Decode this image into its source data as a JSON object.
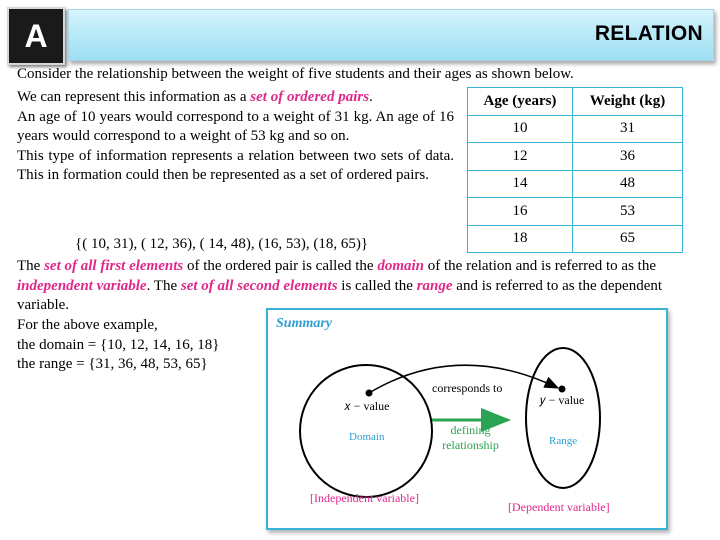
{
  "header": {
    "badge": "A",
    "title": "RELATION"
  },
  "intro": "Consider the relationship between the weight of five students and their ages as shown below.",
  "para1": {
    "line1_pre": "We can represent this information as a ",
    "line1_em": "set of ordered pairs",
    "line1_post": ".",
    "body1": "An age of  10 years would correspond to a weight of 31 kg. An age of 16 years would correspond to a weight of 53 kg and so on.",
    "body2": "This type of information represents a relation between two sets of data. This in formation could then be represented as a set of ordered pairs."
  },
  "ordered_pairs": "{( 10, 31), ( 12, 36), ( 14, 48), (16, 53), (18, 65)}",
  "table": {
    "headers": [
      "Age (years)",
      "Weight (kg)"
    ],
    "rows": [
      [
        "10",
        "31"
      ],
      [
        "12",
        "36"
      ],
      [
        "14",
        "48"
      ],
      [
        "16",
        "53"
      ],
      [
        "18",
        "65"
      ]
    ]
  },
  "para2": {
    "t1": "The ",
    "e1": "set of all first elements",
    "t2": " of the ordered pair is called the ",
    "e2": "domain",
    "t3": " of the relation and is referred to as the ",
    "e3": "independent variable",
    "t4": ". The ",
    "e4": "set of all second elements",
    "t5": " is called the ",
    "e5": "range",
    "t6": " and is referred to as the dependent variable."
  },
  "example": {
    "line1": "For the above example,",
    "line2": "the domain = {10, 12, 14, 16, 18}",
    "line3": "the range = {31, 36, 48, 53, 65}"
  },
  "summary": {
    "title": "Summary",
    "x_value": "𝑥 − value",
    "y_value": "𝑦 − value",
    "corresponds": "corresponds to",
    "defining_1": "defining",
    "defining_2": "relationship",
    "domain": "Domain",
    "range": "Range",
    "independent": "[Independent variable]",
    "dependent": "[Dependent variable]"
  },
  "colors": {
    "accent_pink": "#e0288a",
    "accent_blue": "#2d9fd2",
    "accent_green": "#2aa352",
    "table_border": "#38b3d6"
  }
}
